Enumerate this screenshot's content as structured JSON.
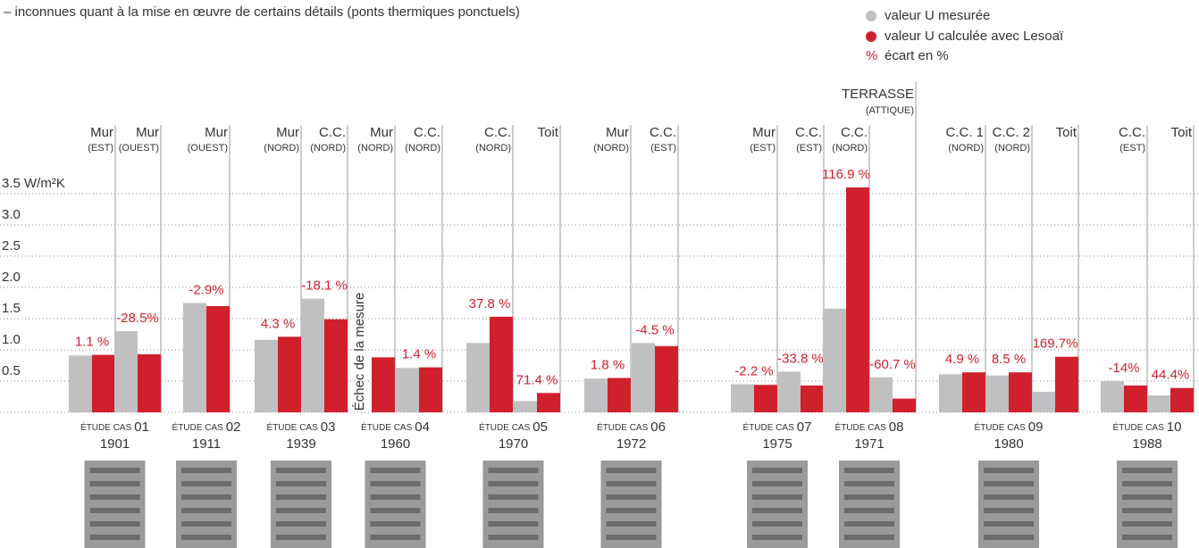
{
  "intro": "– inconnues quant à la mise en œuvre de certains détails (ponts thermiques ponctuels)",
  "chart_data": {
    "type": "bar",
    "ylim": [
      0,
      3.6
    ],
    "yticks": [
      0.5,
      {
        "value": 1,
        "label": "1.0"
      },
      1.5,
      {
        "value": 2,
        "label": "2.0"
      },
      2.5,
      {
        "value": 3,
        "label": "3.0"
      },
      {
        "value": 3.5,
        "label": "3.5 W/m²K"
      }
    ],
    "grid": true,
    "series": [
      {
        "name": "valeur U mesurée",
        "color": "#c0c0c3"
      },
      {
        "name": "valeur U calculée avec Lesoaï",
        "color": "#d0202e"
      }
    ],
    "diff_legend": {
      "symbol": "%",
      "name": "écart en %"
    },
    "failed_label": "Échec de la mesure",
    "case_prefix": "ÉTUDE CAS",
    "cases": [
      {
        "number": "01",
        "year": "1901",
        "elements": [
          {
            "name": "Mur",
            "sub": "(EST)",
            "measured": 0.91,
            "calculated": 0.92,
            "diff_label": "1.1 %"
          },
          {
            "name": "Mur",
            "sub": "(OUEST)",
            "measured": 1.3,
            "calculated": 0.93,
            "diff_label": "-28.5%"
          }
        ]
      },
      {
        "number": "02",
        "year": "1911",
        "elements": [
          {
            "name": "Mur",
            "sub": "(OUEST)",
            "measured": 1.75,
            "calculated": 1.7,
            "diff_label": "-2.9%"
          }
        ]
      },
      {
        "number": "03",
        "year": "1939",
        "elements": [
          {
            "name": "Mur",
            "sub": "(NORD)",
            "measured": 1.16,
            "calculated": 1.21,
            "diff_label": "4.3 %"
          },
          {
            "name": "C.C.",
            "sub": "(NORD)",
            "measured": 1.82,
            "calculated": 1.49,
            "diff_label": "-18.1 %"
          }
        ]
      },
      {
        "number": "04",
        "year": "1960",
        "elements": [
          {
            "name": "Mur",
            "sub": "(NORD)",
            "measured": null,
            "calculated": 0.88
          },
          {
            "name": "C.C.",
            "sub": "(NORD)",
            "measured": 0.71,
            "calculated": 0.72,
            "diff_label": "1.4 %"
          }
        ]
      },
      {
        "number": "05",
        "year": "1970",
        "elements": [
          {
            "name": "C.C.",
            "sub": "(NORD)",
            "measured": 1.11,
            "calculated": 1.53,
            "diff_label": "37.8 %"
          },
          {
            "name": "Toit",
            "measured": 0.18,
            "calculated": 0.31,
            "diff_label": "71.4 %"
          }
        ]
      },
      {
        "number": "06",
        "year": "1972",
        "elements": [
          {
            "name": "Mur",
            "sub": "(NORD)",
            "measured": 0.54,
            "calculated": 0.55,
            "diff_label": "1.8 %"
          },
          {
            "name": "C.C.",
            "sub": "(EST)",
            "measured": 1.11,
            "calculated": 1.06,
            "diff_label": "-4.5 %"
          }
        ]
      },
      {
        "number": "07",
        "year": "1975",
        "elements": [
          {
            "name": "Mur",
            "sub": "(EST)",
            "measured": 0.45,
            "calculated": 0.44,
            "diff_label": "-2.2 %"
          },
          {
            "name": "C.C.",
            "sub": "(EST)",
            "measured": 0.65,
            "calculated": 0.43,
            "diff_label": "-33.8 %"
          }
        ]
      },
      {
        "number": "08",
        "year": "1971",
        "elements": [
          {
            "name": "C.C.",
            "sub": "(NORD)",
            "measured": 1.66,
            "calculated": 3.6,
            "diff_label": "116.9 %"
          },
          {
            "name": "TERRASSE",
            "sub": "(ATTIQUE)",
            "measured": 0.56,
            "calculated": 0.22,
            "diff_label": "-60.7 %"
          }
        ]
      },
      {
        "number": "09",
        "year": "1980",
        "elements": [
          {
            "name": "C.C. 1",
            "sub": "(NORD)",
            "measured": 0.61,
            "calculated": 0.64,
            "diff_label": "4.9 %"
          },
          {
            "name": "C.C. 2",
            "sub": "(NORD)",
            "measured": 0.59,
            "calculated": 0.64,
            "diff_label": "8.5 %"
          },
          {
            "name": "Toit",
            "measured": 0.33,
            "calculated": 0.89,
            "diff_label": "169.7%"
          }
        ]
      },
      {
        "number": "10",
        "year": "1988",
        "elements": [
          {
            "name": "C.C.",
            "sub": "(EST)",
            "measured": 0.5,
            "calculated": 0.43,
            "diff_label": "-14%"
          },
          {
            "name": "Toit",
            "measured": 0.27,
            "calculated": 0.39,
            "diff_label": "44.4%"
          }
        ]
      }
    ]
  }
}
